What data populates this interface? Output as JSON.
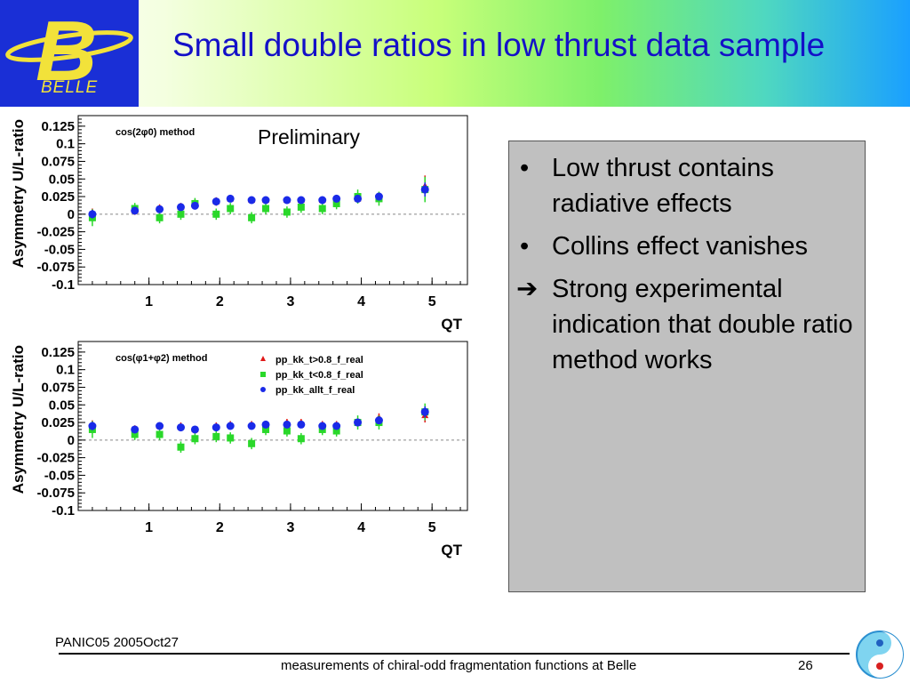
{
  "slide": {
    "title": "Small double ratios in low thrust data sample",
    "logo_text": "BELLE",
    "logo_letter": "B",
    "preliminary": "Preliminary",
    "bullets": [
      {
        "marker": "•",
        "text": "Low thrust contains radiative effects"
      },
      {
        "marker": "•",
        "text": "Collins effect vanishes"
      },
      {
        "marker": "➔",
        "text": "Strong experimental indication that double ratio method works"
      }
    ],
    "footer": {
      "left": "PANIC05 2005Oct27",
      "center": "measurements of chiral-odd fragmentation functions at Belle",
      "page": "26"
    },
    "colors": {
      "title": "#1410c8",
      "logo_bg": "#1a2fd6",
      "logo_fg": "#f2e23a",
      "textbox_bg": "#c0c0c0"
    }
  },
  "chart_data": [
    {
      "type": "scatter",
      "method_label": "cos(2φ0) method",
      "xlabel": "QT",
      "ylabel": "Asymmetry U/L-ratio",
      "xlim": [
        0,
        5.5
      ],
      "ylim": [
        -0.1,
        0.14
      ],
      "x_ticks": [
        "1",
        "2",
        "3",
        "4",
        "5"
      ],
      "y_ticks": [
        "0.125",
        "0.1",
        "0.075",
        "0.05",
        "0.025",
        "0",
        "-0.025",
        "-0.05",
        "-0.075",
        "-0.1"
      ],
      "series": [
        {
          "name": "pp_kk_t>0.8_f_real",
          "color": "#e01818",
          "marker": "triangle",
          "x": [
            0.2,
            0.8,
            1.15,
            1.45,
            1.65,
            1.95,
            2.15,
            2.45,
            2.65,
            2.95,
            3.15,
            3.45,
            3.65,
            3.95,
            4.25,
            4.9
          ],
          "y": [
            0.0,
            0.005,
            0.008,
            0.01,
            0.015,
            0.018,
            0.022,
            0.02,
            0.02,
            0.02,
            0.02,
            0.02,
            0.02,
            0.022,
            0.025,
            0.04
          ],
          "err": [
            0.008,
            0.006,
            0.006,
            0.006,
            0.006,
            0.006,
            0.005,
            0.005,
            0.005,
            0.005,
            0.005,
            0.005,
            0.005,
            0.006,
            0.006,
            0.015
          ]
        },
        {
          "name": "pp_kk_t<0.8_f_real",
          "color": "#2ad82a",
          "marker": "square",
          "x": [
            0.2,
            0.8,
            1.15,
            1.45,
            1.65,
            1.95,
            2.15,
            2.45,
            2.65,
            2.95,
            3.15,
            3.45,
            3.65,
            3.95,
            4.25,
            4.9
          ],
          "y": [
            -0.005,
            0.008,
            -0.005,
            0.0,
            0.015,
            0.0,
            0.008,
            -0.005,
            0.008,
            0.003,
            0.01,
            0.008,
            0.015,
            0.025,
            0.022,
            0.035
          ],
          "err": [
            0.012,
            0.008,
            0.008,
            0.008,
            0.008,
            0.008,
            0.008,
            0.008,
            0.008,
            0.008,
            0.008,
            0.008,
            0.008,
            0.01,
            0.01,
            0.018
          ]
        },
        {
          "name": "pp_kk_allt_f_real",
          "color": "#1a2ae8",
          "marker": "circle",
          "x": [
            0.2,
            0.8,
            1.15,
            1.45,
            1.65,
            1.95,
            2.15,
            2.45,
            2.65,
            2.95,
            3.15,
            3.45,
            3.65,
            3.95,
            4.25,
            4.9
          ],
          "y": [
            0.0,
            0.005,
            0.007,
            0.01,
            0.012,
            0.018,
            0.022,
            0.02,
            0.02,
            0.02,
            0.02,
            0.02,
            0.022,
            0.022,
            0.025,
            0.035
          ],
          "err": [
            0.006,
            0.004,
            0.004,
            0.004,
            0.004,
            0.004,
            0.004,
            0.004,
            0.004,
            0.004,
            0.004,
            0.004,
            0.004,
            0.005,
            0.005,
            0.01
          ]
        }
      ]
    },
    {
      "type": "scatter",
      "method_label": "cos(φ1+φ2) method",
      "xlabel": "QT",
      "ylabel": "Asymmetry U/L-ratio",
      "xlim": [
        0,
        5.5
      ],
      "ylim": [
        -0.1,
        0.14
      ],
      "x_ticks": [
        "1",
        "2",
        "3",
        "4",
        "5"
      ],
      "y_ticks": [
        "0.125",
        "0.1",
        "0.075",
        "0.05",
        "0.025",
        "0",
        "-0.025",
        "-0.05",
        "-0.075",
        "-0.1"
      ],
      "legend": [
        "pp_kk_t>0.8_f_real",
        "pp_kk_t<0.8_f_real",
        "pp_kk_allt_f_real"
      ],
      "series": [
        {
          "name": "pp_kk_t>0.8_f_real",
          "color": "#e01818",
          "marker": "triangle",
          "x": [
            0.2,
            0.8,
            1.15,
            1.45,
            1.65,
            1.95,
            2.15,
            2.45,
            2.65,
            2.95,
            3.15,
            3.45,
            3.65,
            3.95,
            4.25,
            4.9
          ],
          "y": [
            0.02,
            0.015,
            0.02,
            0.02,
            0.015,
            0.02,
            0.022,
            0.022,
            0.022,
            0.025,
            0.025,
            0.022,
            0.022,
            0.025,
            0.032,
            0.035
          ],
          "err": [
            0.008,
            0.006,
            0.005,
            0.005,
            0.005,
            0.005,
            0.005,
            0.005,
            0.005,
            0.005,
            0.005,
            0.005,
            0.005,
            0.006,
            0.006,
            0.01
          ]
        },
        {
          "name": "pp_kk_t<0.8_f_real",
          "color": "#2ad82a",
          "marker": "square",
          "x": [
            0.2,
            0.8,
            1.15,
            1.45,
            1.65,
            1.95,
            2.15,
            2.45,
            2.65,
            2.95,
            3.15,
            3.45,
            3.65,
            3.95,
            4.25,
            4.9
          ],
          "y": [
            0.015,
            0.008,
            0.008,
            -0.01,
            0.002,
            0.005,
            0.003,
            -0.005,
            0.015,
            0.013,
            0.002,
            0.015,
            0.013,
            0.025,
            0.025,
            0.04
          ],
          "err": [
            0.012,
            0.008,
            0.008,
            0.008,
            0.008,
            0.008,
            0.008,
            0.008,
            0.008,
            0.008,
            0.008,
            0.008,
            0.008,
            0.01,
            0.01,
            0.012
          ]
        },
        {
          "name": "pp_kk_allt_f_real",
          "color": "#1a2ae8",
          "marker": "circle",
          "x": [
            0.2,
            0.8,
            1.15,
            1.45,
            1.65,
            1.95,
            2.15,
            2.45,
            2.65,
            2.95,
            3.15,
            3.45,
            3.65,
            3.95,
            4.25,
            4.9
          ],
          "y": [
            0.02,
            0.015,
            0.02,
            0.018,
            0.015,
            0.018,
            0.02,
            0.02,
            0.022,
            0.022,
            0.022,
            0.02,
            0.02,
            0.025,
            0.028,
            0.04
          ],
          "err": [
            0.006,
            0.004,
            0.004,
            0.004,
            0.004,
            0.004,
            0.004,
            0.004,
            0.004,
            0.004,
            0.004,
            0.004,
            0.004,
            0.005,
            0.005,
            0.008
          ]
        }
      ]
    }
  ]
}
